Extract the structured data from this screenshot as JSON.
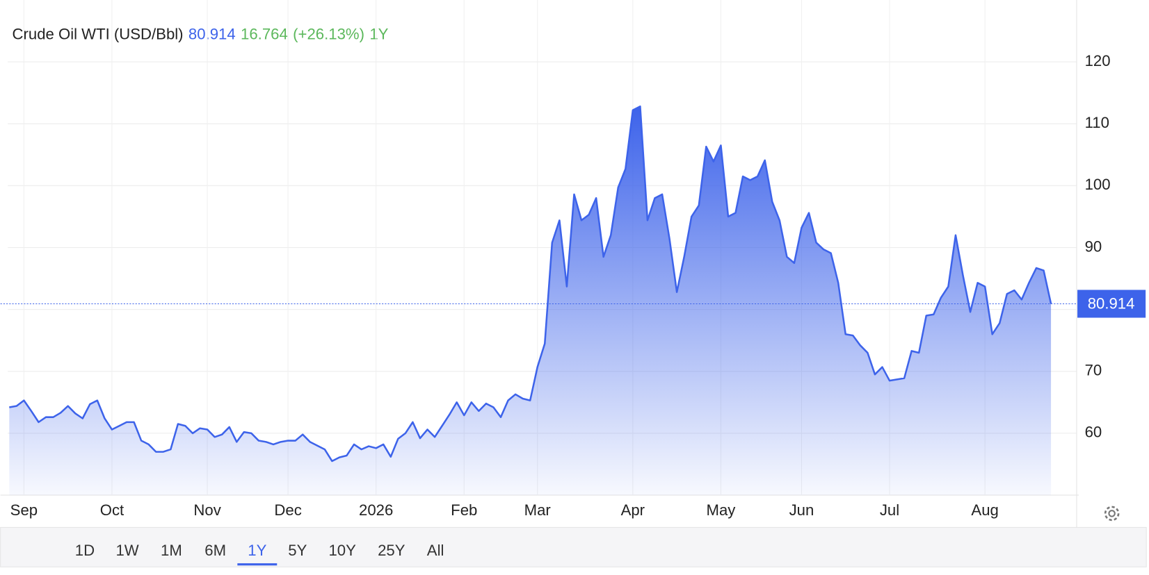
{
  "chart_data": {
    "type": "area",
    "title": "Crude Oil WTI (USD/Bbl)",
    "change": 16.764,
    "change_percent": "(+26.13%)",
    "selected_range": "1Y",
    "range_buttons": [
      "1D",
      "1W",
      "1M",
      "6M",
      "1Y",
      "5Y",
      "10Y",
      "25Y",
      "All"
    ],
    "color": "#3d63ea",
    "change_color": "#5cb85c",
    "grid": true,
    "ylim": [
      50,
      129.4
    ],
    "yticks": [
      60,
      70,
      80,
      90,
      100,
      110,
      120
    ],
    "categories": [
      null,
      null,
      "Sep",
      null,
      null,
      null,
      null,
      null,
      null,
      null,
      null,
      null,
      null,
      null,
      "Oct",
      null,
      null,
      null,
      null,
      null,
      null,
      null,
      null,
      null,
      null,
      null,
      null,
      "Nov",
      null,
      null,
      null,
      null,
      null,
      null,
      null,
      null,
      null,
      null,
      "Dec",
      null,
      null,
      null,
      null,
      null,
      null,
      null,
      null,
      null,
      null,
      null,
      "2026",
      null,
      null,
      null,
      null,
      null,
      null,
      null,
      null,
      null,
      null,
      null,
      "Feb",
      null,
      null,
      null,
      null,
      null,
      null,
      null,
      null,
      null,
      "Mar",
      null,
      null,
      null,
      null,
      null,
      null,
      null,
      null,
      null,
      null,
      null,
      null,
      "Apr",
      null,
      null,
      null,
      null,
      null,
      null,
      null,
      null,
      null,
      null,
      null,
      "May",
      null,
      null,
      null,
      null,
      null,
      null,
      null,
      null,
      null,
      null,
      "Jun",
      null,
      null,
      null,
      null,
      null,
      null,
      null,
      null,
      null,
      null,
      null,
      "Jul",
      null,
      null,
      null,
      null,
      null,
      null,
      null,
      null,
      null,
      null,
      null,
      null,
      "Aug",
      null,
      null,
      null,
      null,
      null,
      null,
      null,
      null,
      null
    ],
    "values": [
      64.2,
      64.4,
      65.3,
      63.6,
      61.8,
      62.6,
      62.6,
      63.3,
      64.4,
      63.2,
      62.4,
      64.7,
      65.3,
      62.4,
      60.6,
      61.2,
      61.8,
      61.8,
      58.8,
      58.2,
      57.0,
      57.0,
      57.4,
      61.5,
      61.2,
      60.0,
      60.8,
      60.6,
      59.4,
      59.8,
      61.0,
      58.6,
      60.2,
      60.0,
      58.8,
      58.6,
      58.2,
      58.6,
      58.8,
      58.8,
      59.8,
      58.6,
      58.0,
      57.4,
      55.5,
      56.1,
      56.4,
      58.2,
      57.4,
      57.9,
      57.6,
      58.2,
      56.2,
      59.1,
      60.0,
      61.8,
      59.2,
      60.6,
      59.4,
      61.2,
      63.0,
      65.0,
      62.9,
      65.0,
      63.6,
      64.8,
      64.2,
      62.6,
      65.3,
      66.3,
      65.6,
      65.3,
      70.7,
      74.5,
      90.8,
      94.4,
      83.7,
      98.6,
      94.4,
      95.3,
      98.0,
      88.5,
      92.0,
      99.7,
      102.7,
      112.2,
      112.8,
      94.4,
      98.0,
      98.6,
      91.4,
      82.8,
      88.5,
      95.0,
      96.8,
      106.3,
      103.9,
      106.5,
      95.0,
      95.6,
      101.5,
      100.9,
      101.5,
      104.1,
      97.4,
      94.4,
      88.5,
      87.5,
      93.2,
      95.6,
      90.8,
      89.7,
      89.1,
      84.3,
      76.0,
      75.8,
      74.2,
      73.0,
      69.5,
      70.7,
      68.5,
      68.7,
      68.9,
      73.3,
      73.0,
      79.0,
      79.2,
      81.9,
      83.7,
      92.0,
      85.5,
      79.6,
      84.3,
      83.7,
      76.0,
      77.8,
      82.5,
      83.1,
      81.6,
      84.3,
      86.7,
      86.3,
      80.914
    ]
  }
}
